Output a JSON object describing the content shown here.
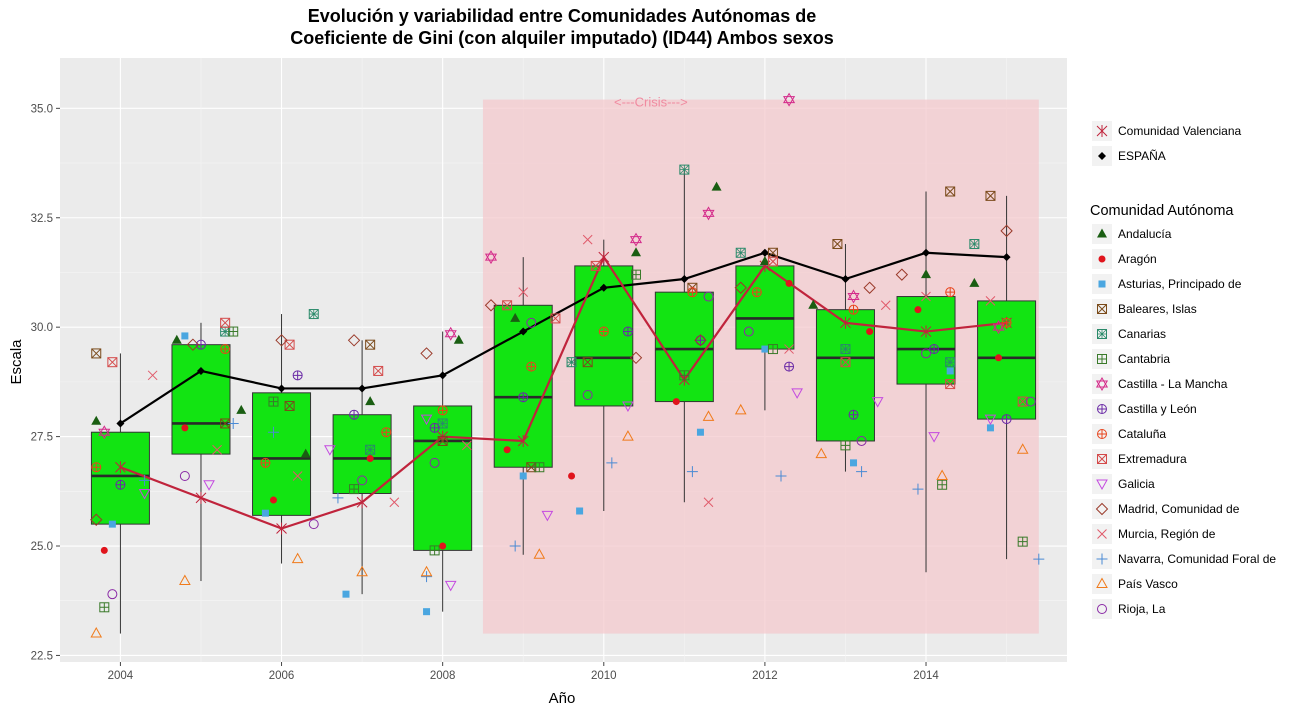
{
  "chart_data": {
    "type": "boxplot",
    "title_line1": "Evolución y variabilidad entre Comunidades Autónomas de",
    "title_line2": "Coeficiente de Gini (con alquiler imputado) (ID44) Ambos sexos",
    "xlabel": "Año",
    "ylabel": "Escala",
    "xlim": [
      2003.25,
      2015.75
    ],
    "ylim": [
      22.35,
      36.15
    ],
    "x_ticks": [
      2004,
      2006,
      2008,
      2010,
      2012,
      2014
    ],
    "y_ticks": [
      22.5,
      25.0,
      27.5,
      30.0,
      32.5,
      35.0
    ],
    "y_tick_labels": [
      "22.5",
      "25.0",
      "27.5",
      "30.0",
      "32.5",
      "35.0"
    ],
    "grid": true,
    "legend_position": "right",
    "crisis": {
      "label": "<---Crisis--->",
      "from": 2008.5,
      "to": 2015.4,
      "ymin": 23.0,
      "ymax": 35.2,
      "color": "#f4c9ce"
    },
    "box_color": "#12e412",
    "boxes": [
      {
        "year": 2004,
        "min": 23.0,
        "q1": 25.5,
        "median": 26.6,
        "q3": 27.6,
        "max": 29.4
      },
      {
        "year": 2005,
        "min": 24.2,
        "q1": 27.1,
        "median": 27.8,
        "q3": 29.6,
        "max": 30.1
      },
      {
        "year": 2006,
        "min": 24.6,
        "q1": 25.7,
        "median": 27.0,
        "q3": 28.5,
        "max": 30.3
      },
      {
        "year": 2007,
        "min": 23.9,
        "q1": 26.2,
        "median": 27.0,
        "q3": 28.0,
        "max": 29.7
      },
      {
        "year": 2008,
        "min": 23.5,
        "q1": 24.9,
        "median": 27.4,
        "q3": 28.2,
        "max": 29.9
      },
      {
        "year": 2009,
        "min": 24.8,
        "q1": 26.8,
        "median": 28.4,
        "q3": 30.5,
        "max": 31.6
      },
      {
        "year": 2010,
        "min": 25.8,
        "q1": 28.2,
        "median": 29.3,
        "q3": 31.4,
        "max": 32.0
      },
      {
        "year": 2011,
        "min": 26.0,
        "q1": 28.3,
        "median": 29.5,
        "q3": 30.8,
        "max": 33.6
      },
      {
        "year": 2012,
        "min": 28.1,
        "q1": 29.5,
        "median": 30.2,
        "q3": 31.4,
        "max": 31.7
      },
      {
        "year": 2013,
        "min": 26.7,
        "q1": 27.4,
        "median": 29.3,
        "q3": 30.4,
        "max": 31.9
      },
      {
        "year": 2014,
        "min": 24.4,
        "q1": 28.7,
        "median": 29.5,
        "q3": 30.7,
        "max": 33.1
      },
      {
        "year": 2015,
        "min": 24.7,
        "q1": 27.9,
        "median": 29.3,
        "q3": 30.6,
        "max": 33.0
      }
    ],
    "series": [
      {
        "name": "ESPAÑA",
        "color": "#000000",
        "marker": "diamond",
        "x": [
          2004,
          2005,
          2006,
          2007,
          2008,
          2009,
          2010,
          2011,
          2012,
          2013,
          2014,
          2015
        ],
        "values": [
          27.8,
          29.0,
          28.6,
          28.6,
          28.9,
          29.9,
          30.9,
          31.1,
          31.7,
          31.1,
          31.7,
          31.6
        ]
      },
      {
        "name": "Comunidad Valenciana",
        "color": "#c0243c",
        "marker": "asterisk",
        "x": [
          2004,
          2005,
          2006,
          2007,
          2008,
          2009,
          2010,
          2011,
          2012,
          2013,
          2014,
          2015
        ],
        "values": [
          26.8,
          26.1,
          25.4,
          26.0,
          27.5,
          27.4,
          31.6,
          28.8,
          31.4,
          30.1,
          29.9,
          30.1
        ]
      }
    ],
    "legend_lines": [
      {
        "label": "Comunidad Valenciana",
        "marker": "asterisk",
        "color": "#c0243c"
      },
      {
        "label": "ESPAÑA",
        "marker": "diamond",
        "color": "#000000"
      }
    ],
    "legend_title": "Comunidad Autónoma",
    "regions": [
      {
        "name": "Andalucía",
        "color": "#1a5e12",
        "marker": "triangle-filled",
        "points": [
          [
            2003.7,
            27.85
          ],
          [
            2004.7,
            29.7
          ],
          [
            2005.5,
            28.1
          ],
          [
            2006.3,
            27.1
          ],
          [
            2007.1,
            28.3
          ],
          [
            2008.2,
            29.7
          ],
          [
            2008.9,
            30.2
          ],
          [
            2010.4,
            31.7
          ],
          [
            2011.4,
            33.2
          ],
          [
            2012.0,
            31.5
          ],
          [
            2012.6,
            30.5
          ],
          [
            2014.0,
            31.2
          ],
          [
            2014.6,
            31.0
          ]
        ]
      },
      {
        "name": "Aragón",
        "color": "#e0141c",
        "marker": "circle-filled",
        "points": [
          [
            2003.8,
            24.9
          ],
          [
            2004.8,
            27.7
          ],
          [
            2005.9,
            26.05
          ],
          [
            2007.1,
            27.0
          ],
          [
            2008.0,
            25.0
          ],
          [
            2008.8,
            27.2
          ],
          [
            2009.6,
            26.6
          ],
          [
            2010.9,
            28.3
          ],
          [
            2012.3,
            31.0
          ],
          [
            2013.3,
            29.9
          ],
          [
            2013.9,
            30.4
          ],
          [
            2014.9,
            29.3
          ]
        ]
      },
      {
        "name": "Asturias, Principado de",
        "color": "#4aa6e0",
        "marker": "square-filled",
        "points": [
          [
            2003.9,
            25.5
          ],
          [
            2004.8,
            29.8
          ],
          [
            2005.8,
            25.75
          ],
          [
            2006.8,
            23.9
          ],
          [
            2007.8,
            23.5
          ],
          [
            2009.0,
            26.6
          ],
          [
            2009.7,
            25.8
          ],
          [
            2011.2,
            27.6
          ],
          [
            2012.0,
            29.5
          ],
          [
            2013.1,
            26.9
          ],
          [
            2014.3,
            29.0
          ],
          [
            2014.8,
            27.7
          ]
        ]
      },
      {
        "name": "Baleares, Islas",
        "color": "#7a4a1a",
        "marker": "square-x",
        "points": [
          [
            2003.7,
            29.4
          ],
          [
            2005.3,
            27.8
          ],
          [
            2006.1,
            28.2
          ],
          [
            2007.1,
            29.6
          ],
          [
            2008.0,
            27.4
          ],
          [
            2009.1,
            26.8
          ],
          [
            2009.8,
            29.2
          ],
          [
            2011.1,
            30.9
          ],
          [
            2012.1,
            31.7
          ],
          [
            2012.9,
            31.9
          ],
          [
            2014.3,
            33.1
          ],
          [
            2014.8,
            33.0
          ]
        ]
      },
      {
        "name": "Canarias",
        "color": "#2a8a6a",
        "marker": "square-cross-x",
        "points": [
          [
            2005.3,
            29.9
          ],
          [
            2006.4,
            30.3
          ],
          [
            2007.1,
            27.2
          ],
          [
            2008.0,
            27.8
          ],
          [
            2009.6,
            29.2
          ],
          [
            2011.0,
            33.6
          ],
          [
            2011.7,
            31.7
          ],
          [
            2013.0,
            29.5
          ],
          [
            2014.6,
            31.9
          ],
          [
            2014.3,
            29.2
          ]
        ]
      },
      {
        "name": "Cantabria",
        "color": "#3a7a2a",
        "marker": "square-plus",
        "points": [
          [
            2003.8,
            23.6
          ],
          [
            2005.4,
            29.9
          ],
          [
            2005.9,
            28.3
          ],
          [
            2006.9,
            26.3
          ],
          [
            2007.9,
            24.9
          ],
          [
            2009.2,
            26.8
          ],
          [
            2010.4,
            31.2
          ],
          [
            2011.0,
            28.9
          ],
          [
            2012.1,
            29.5
          ],
          [
            2013.0,
            27.3
          ],
          [
            2014.2,
            26.4
          ],
          [
            2015.2,
            25.1
          ]
        ]
      },
      {
        "name": "Castilla - La Mancha",
        "color": "#d42a8a",
        "marker": "star-david",
        "points": [
          [
            2003.8,
            27.6
          ],
          [
            2008.1,
            29.85
          ],
          [
            2008.6,
            31.6
          ],
          [
            2010.4,
            32.0
          ],
          [
            2011.3,
            32.6
          ],
          [
            2012.3,
            35.2
          ],
          [
            2013.1,
            30.7
          ],
          [
            2014.9,
            30.0
          ]
        ]
      },
      {
        "name": "Castilla y León",
        "color": "#6a2aa6",
        "marker": "circle-plus",
        "points": [
          [
            2004.0,
            26.4
          ],
          [
            2005.0,
            29.6
          ],
          [
            2006.2,
            28.9
          ],
          [
            2006.9,
            28.0
          ],
          [
            2007.9,
            27.7
          ],
          [
            2009.0,
            28.4
          ],
          [
            2010.3,
            29.9
          ],
          [
            2011.2,
            29.7
          ],
          [
            2012.3,
            29.1
          ],
          [
            2013.1,
            28.0
          ],
          [
            2014.1,
            29.5
          ],
          [
            2015.0,
            27.9
          ]
        ]
      },
      {
        "name": "Cataluña",
        "color": "#e8441c",
        "marker": "circle-plus-open",
        "points": [
          [
            2003.7,
            26.8
          ],
          [
            2005.3,
            29.5
          ],
          [
            2005.8,
            26.9
          ],
          [
            2007.3,
            27.6
          ],
          [
            2008.0,
            28.1
          ],
          [
            2009.1,
            29.1
          ],
          [
            2010.0,
            29.9
          ],
          [
            2011.1,
            30.8
          ],
          [
            2011.9,
            30.8
          ],
          [
            2013.1,
            30.4
          ],
          [
            2014.3,
            30.8
          ],
          [
            2015.0,
            30.1
          ]
        ]
      },
      {
        "name": "Extremadura",
        "color": "#d44a4a",
        "marker": "square-x-open",
        "points": [
          [
            2003.9,
            29.2
          ],
          [
            2005.3,
            30.1
          ],
          [
            2006.1,
            29.6
          ],
          [
            2007.2,
            29.0
          ],
          [
            2008.8,
            30.5
          ],
          [
            2009.4,
            30.2
          ],
          [
            2009.9,
            31.4
          ],
          [
            2012.1,
            31.5
          ],
          [
            2013.0,
            29.2
          ],
          [
            2014.3,
            28.7
          ],
          [
            2015.2,
            28.3
          ]
        ]
      },
      {
        "name": "Galicia",
        "color": "#c44ae0",
        "marker": "triangle-down",
        "points": [
          [
            2004.3,
            26.2
          ],
          [
            2005.1,
            26.4
          ],
          [
            2006.6,
            27.2
          ],
          [
            2007.8,
            27.9
          ],
          [
            2008.1,
            24.1
          ],
          [
            2009.3,
            25.7
          ],
          [
            2010.3,
            28.2
          ],
          [
            2012.4,
            28.5
          ],
          [
            2013.4,
            28.3
          ],
          [
            2014.1,
            27.5
          ],
          [
            2014.8,
            27.9
          ]
        ]
      },
      {
        "name": "Madrid, Comunidad de",
        "color": "#9a3a2a",
        "marker": "diamond-open",
        "points": [
          [
            2003.7,
            25.6
          ],
          [
            2004.9,
            29.6
          ],
          [
            2006.0,
            29.7
          ],
          [
            2006.9,
            29.7
          ],
          [
            2007.8,
            29.4
          ],
          [
            2008.6,
            30.5
          ],
          [
            2010.4,
            29.3
          ],
          [
            2011.2,
            29.7
          ],
          [
            2011.7,
            30.9
          ],
          [
            2013.3,
            30.9
          ],
          [
            2013.7,
            31.2
          ],
          [
            2015.0,
            32.2
          ]
        ]
      },
      {
        "name": "Murcia, Región de",
        "color": "#e05a6a",
        "marker": "x",
        "points": [
          [
            2004.4,
            28.9
          ],
          [
            2005.2,
            27.2
          ],
          [
            2006.2,
            26.6
          ],
          [
            2007.4,
            26.0
          ],
          [
            2008.3,
            27.3
          ],
          [
            2009.0,
            30.8
          ],
          [
            2009.8,
            32.0
          ],
          [
            2011.3,
            26.0
          ],
          [
            2012.3,
            29.5
          ],
          [
            2013.5,
            30.5
          ],
          [
            2014.0,
            30.7
          ],
          [
            2014.8,
            30.6
          ]
        ]
      },
      {
        "name": "Navarra, Comunidad Foral de",
        "color": "#4a8ad4",
        "marker": "plus",
        "points": [
          [
            2004.3,
            26.5
          ],
          [
            2005.4,
            27.8
          ],
          [
            2005.9,
            27.6
          ],
          [
            2006.7,
            26.1
          ],
          [
            2007.8,
            24.3
          ],
          [
            2008.9,
            25.0
          ],
          [
            2010.1,
            26.9
          ],
          [
            2011.1,
            26.7
          ],
          [
            2012.2,
            26.6
          ],
          [
            2013.2,
            26.7
          ],
          [
            2013.9,
            26.3
          ],
          [
            2015.4,
            24.7
          ]
        ]
      },
      {
        "name": "País Vasco",
        "color": "#f07a1a",
        "marker": "triangle-open",
        "points": [
          [
            2003.7,
            23.0
          ],
          [
            2004.8,
            24.2
          ],
          [
            2006.2,
            24.7
          ],
          [
            2007.0,
            24.4
          ],
          [
            2007.8,
            24.4
          ],
          [
            2009.2,
            24.8
          ],
          [
            2010.3,
            27.5
          ],
          [
            2011.3,
            27.95
          ],
          [
            2011.7,
            28.1
          ],
          [
            2012.7,
            27.1
          ],
          [
            2014.2,
            26.6
          ],
          [
            2015.2,
            27.2
          ]
        ]
      },
      {
        "name": "Rioja, La",
        "color": "#8a2aa6",
        "marker": "circle-open",
        "points": [
          [
            2003.9,
            23.9
          ],
          [
            2004.8,
            26.6
          ],
          [
            2006.4,
            25.5
          ],
          [
            2007.0,
            26.5
          ],
          [
            2007.9,
            26.9
          ],
          [
            2009.1,
            30.1
          ],
          [
            2009.8,
            28.45
          ],
          [
            2011.3,
            30.7
          ],
          [
            2011.8,
            29.9
          ],
          [
            2013.2,
            27.4
          ],
          [
            2014.0,
            29.4
          ],
          [
            2015.3,
            28.3
          ]
        ]
      }
    ]
  }
}
